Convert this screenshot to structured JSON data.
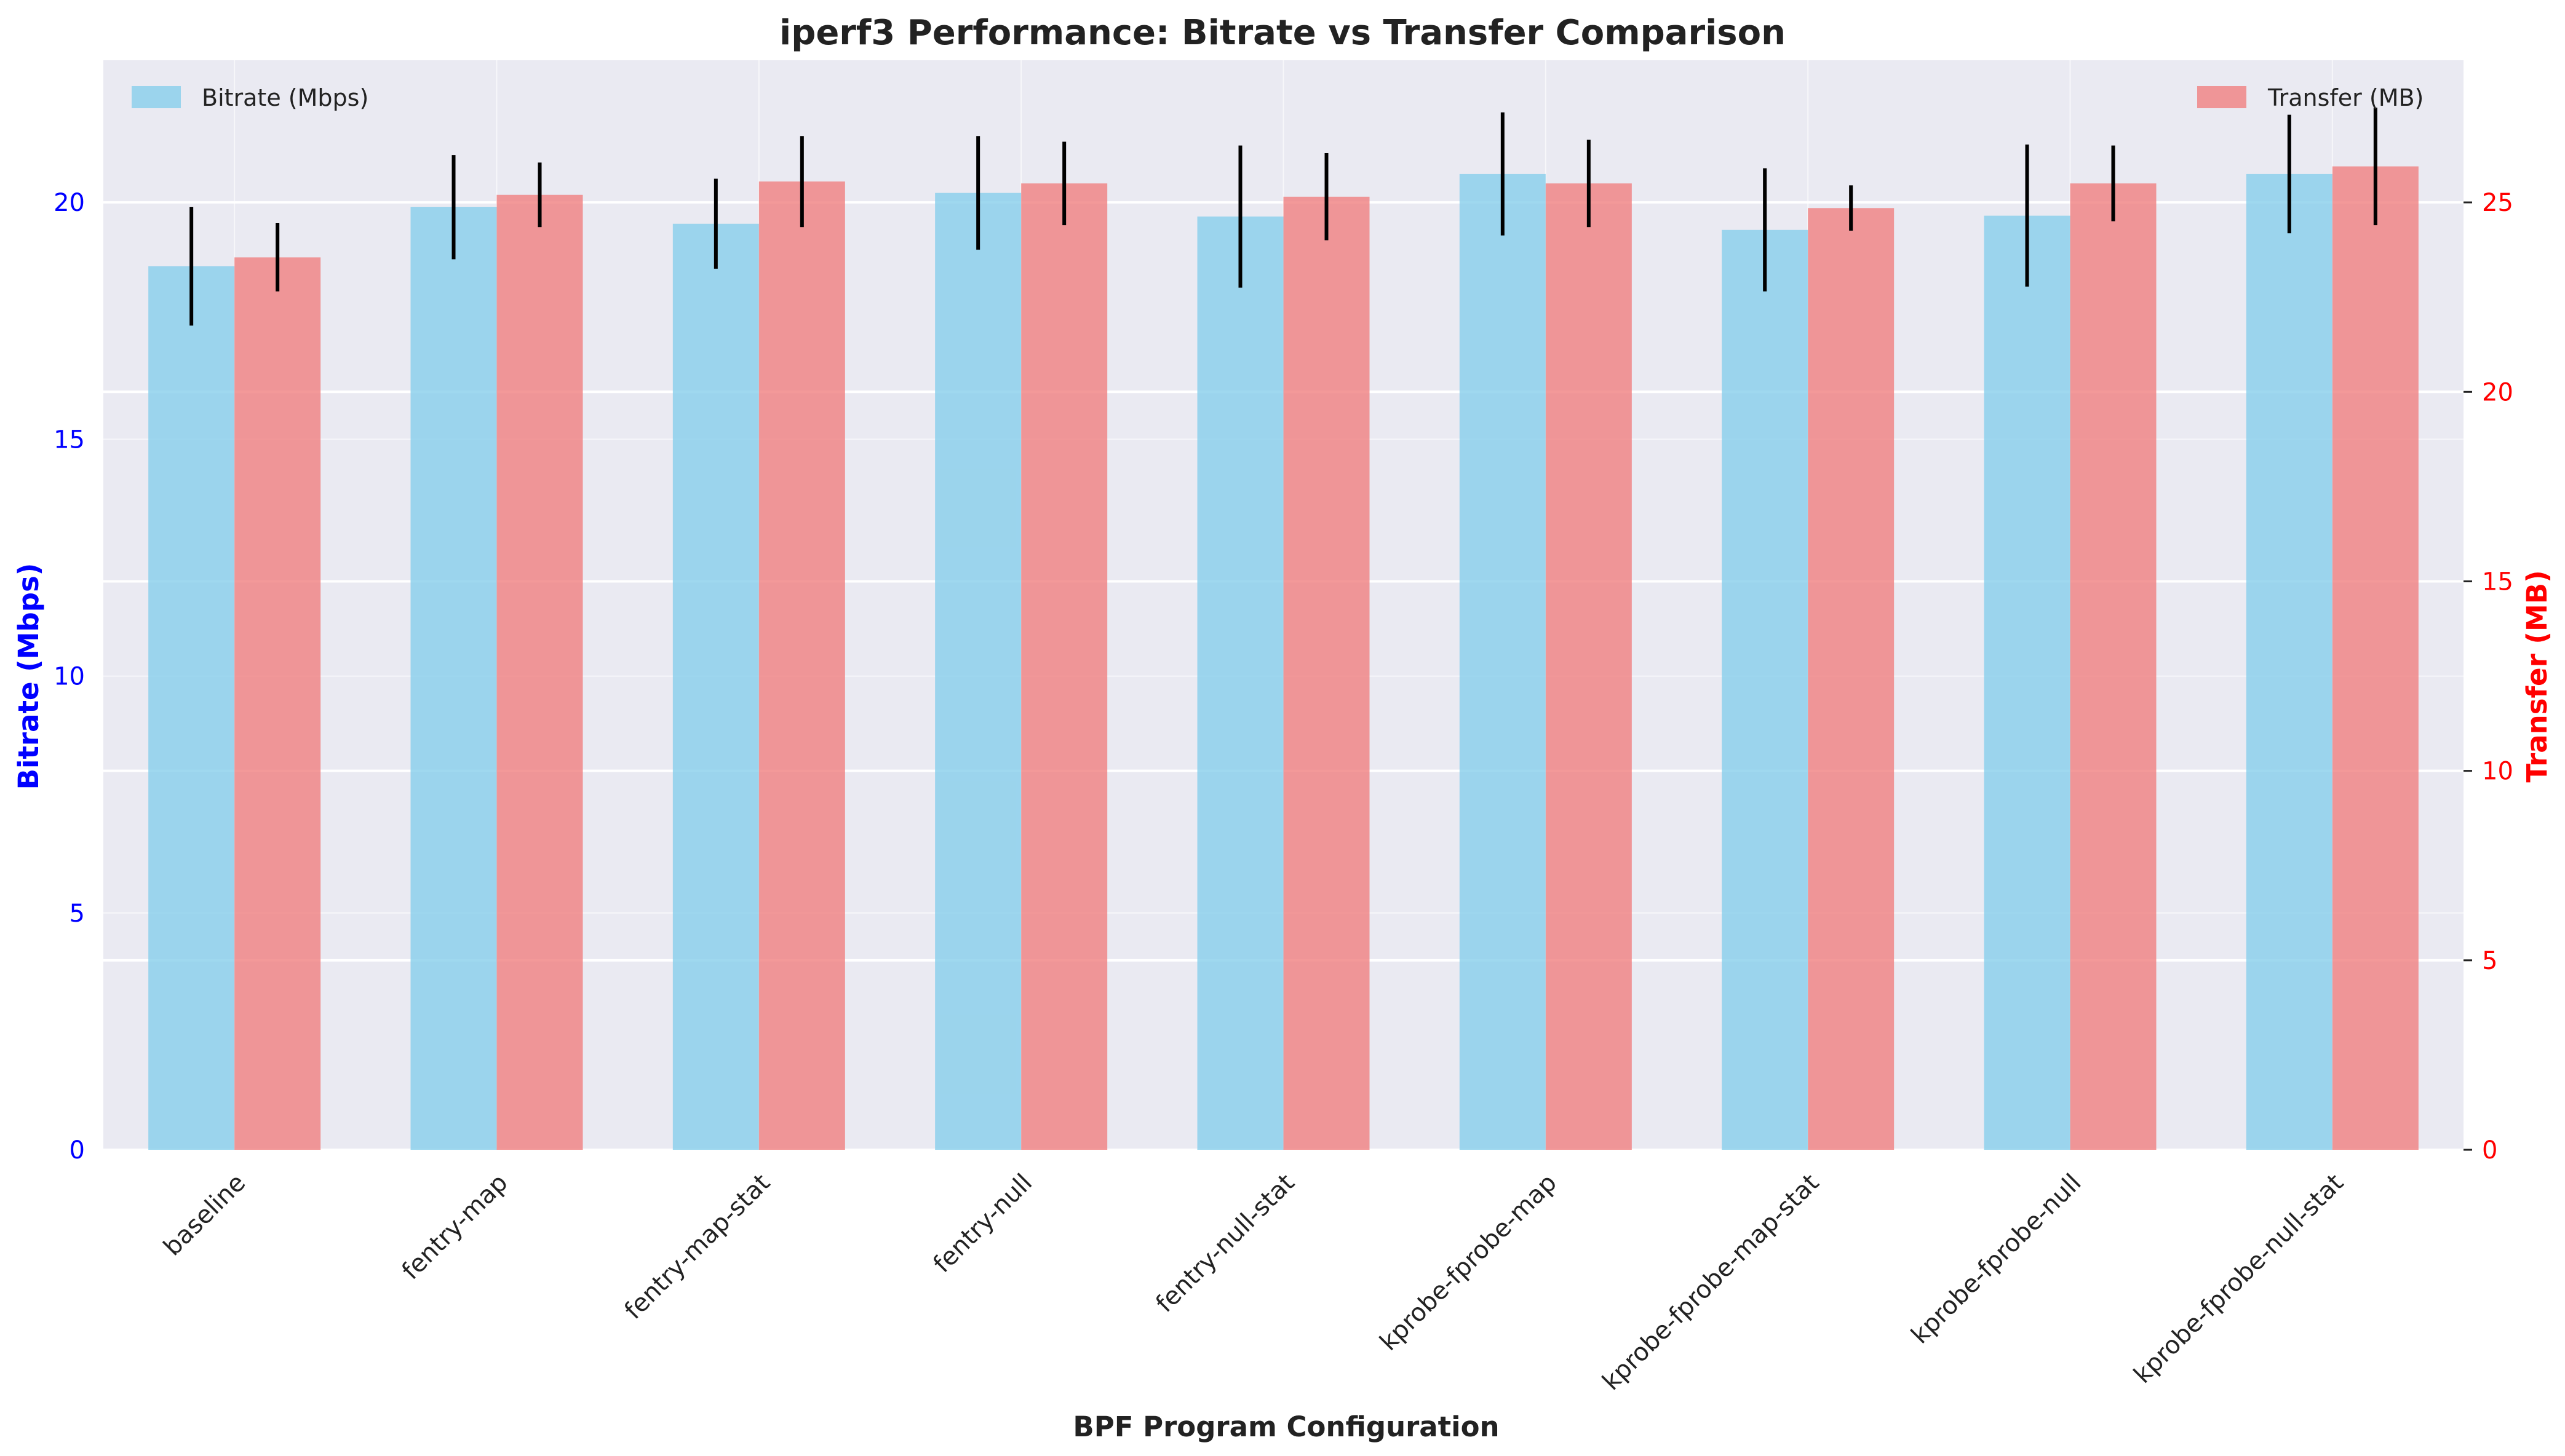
{
  "chart_data": {
    "type": "bar",
    "title": "iperf3 Performance: Bitrate vs Transfer Comparison",
    "xlabel": "BPF Program Configuration",
    "categories": [
      "baseline",
      "fentry-map",
      "fentry-map-stat",
      "fentry-null",
      "fentry-null-stat",
      "kprobe-fprobe-map",
      "kprobe-fprobe-map-stat",
      "kprobe-fprobe-null",
      "kprobe-fprobe-null-stat"
    ],
    "left_axis": {
      "label": "Bitrate (Mbps)",
      "color": "#0000ff",
      "ylim": [
        0,
        23
      ],
      "ticks": [
        0,
        5,
        10,
        15,
        20
      ]
    },
    "right_axis": {
      "label": "Transfer (MB)",
      "color": "#ff0000",
      "ylim": [
        0,
        28.75
      ],
      "ticks": [
        0,
        5,
        10,
        15,
        20,
        25
      ]
    },
    "series": [
      {
        "name": "Bitrate (Mbps)",
        "axis": "left",
        "color": "#87ceeb",
        "values": [
          18.65,
          19.9,
          19.55,
          20.2,
          19.7,
          20.6,
          19.42,
          19.72,
          20.6
        ],
        "errors": [
          1.25,
          1.1,
          0.95,
          1.2,
          1.5,
          1.3,
          1.3,
          1.5,
          1.25
        ]
      },
      {
        "name": "Transfer (MB)",
        "axis": "right",
        "color": "#f08080",
        "values": [
          23.55,
          25.2,
          25.55,
          25.5,
          25.15,
          25.5,
          24.85,
          25.5,
          25.95
        ],
        "errors": [
          0.9,
          0.85,
          1.2,
          1.1,
          1.15,
          1.15,
          0.6,
          1.0,
          1.55
        ]
      }
    ],
    "legend": [
      {
        "label": "Bitrate (Mbps)",
        "placement": "top-left"
      },
      {
        "label": "Transfer (MB)",
        "placement": "top-right"
      }
    ],
    "grid": true,
    "background": "#eaeaf2"
  }
}
